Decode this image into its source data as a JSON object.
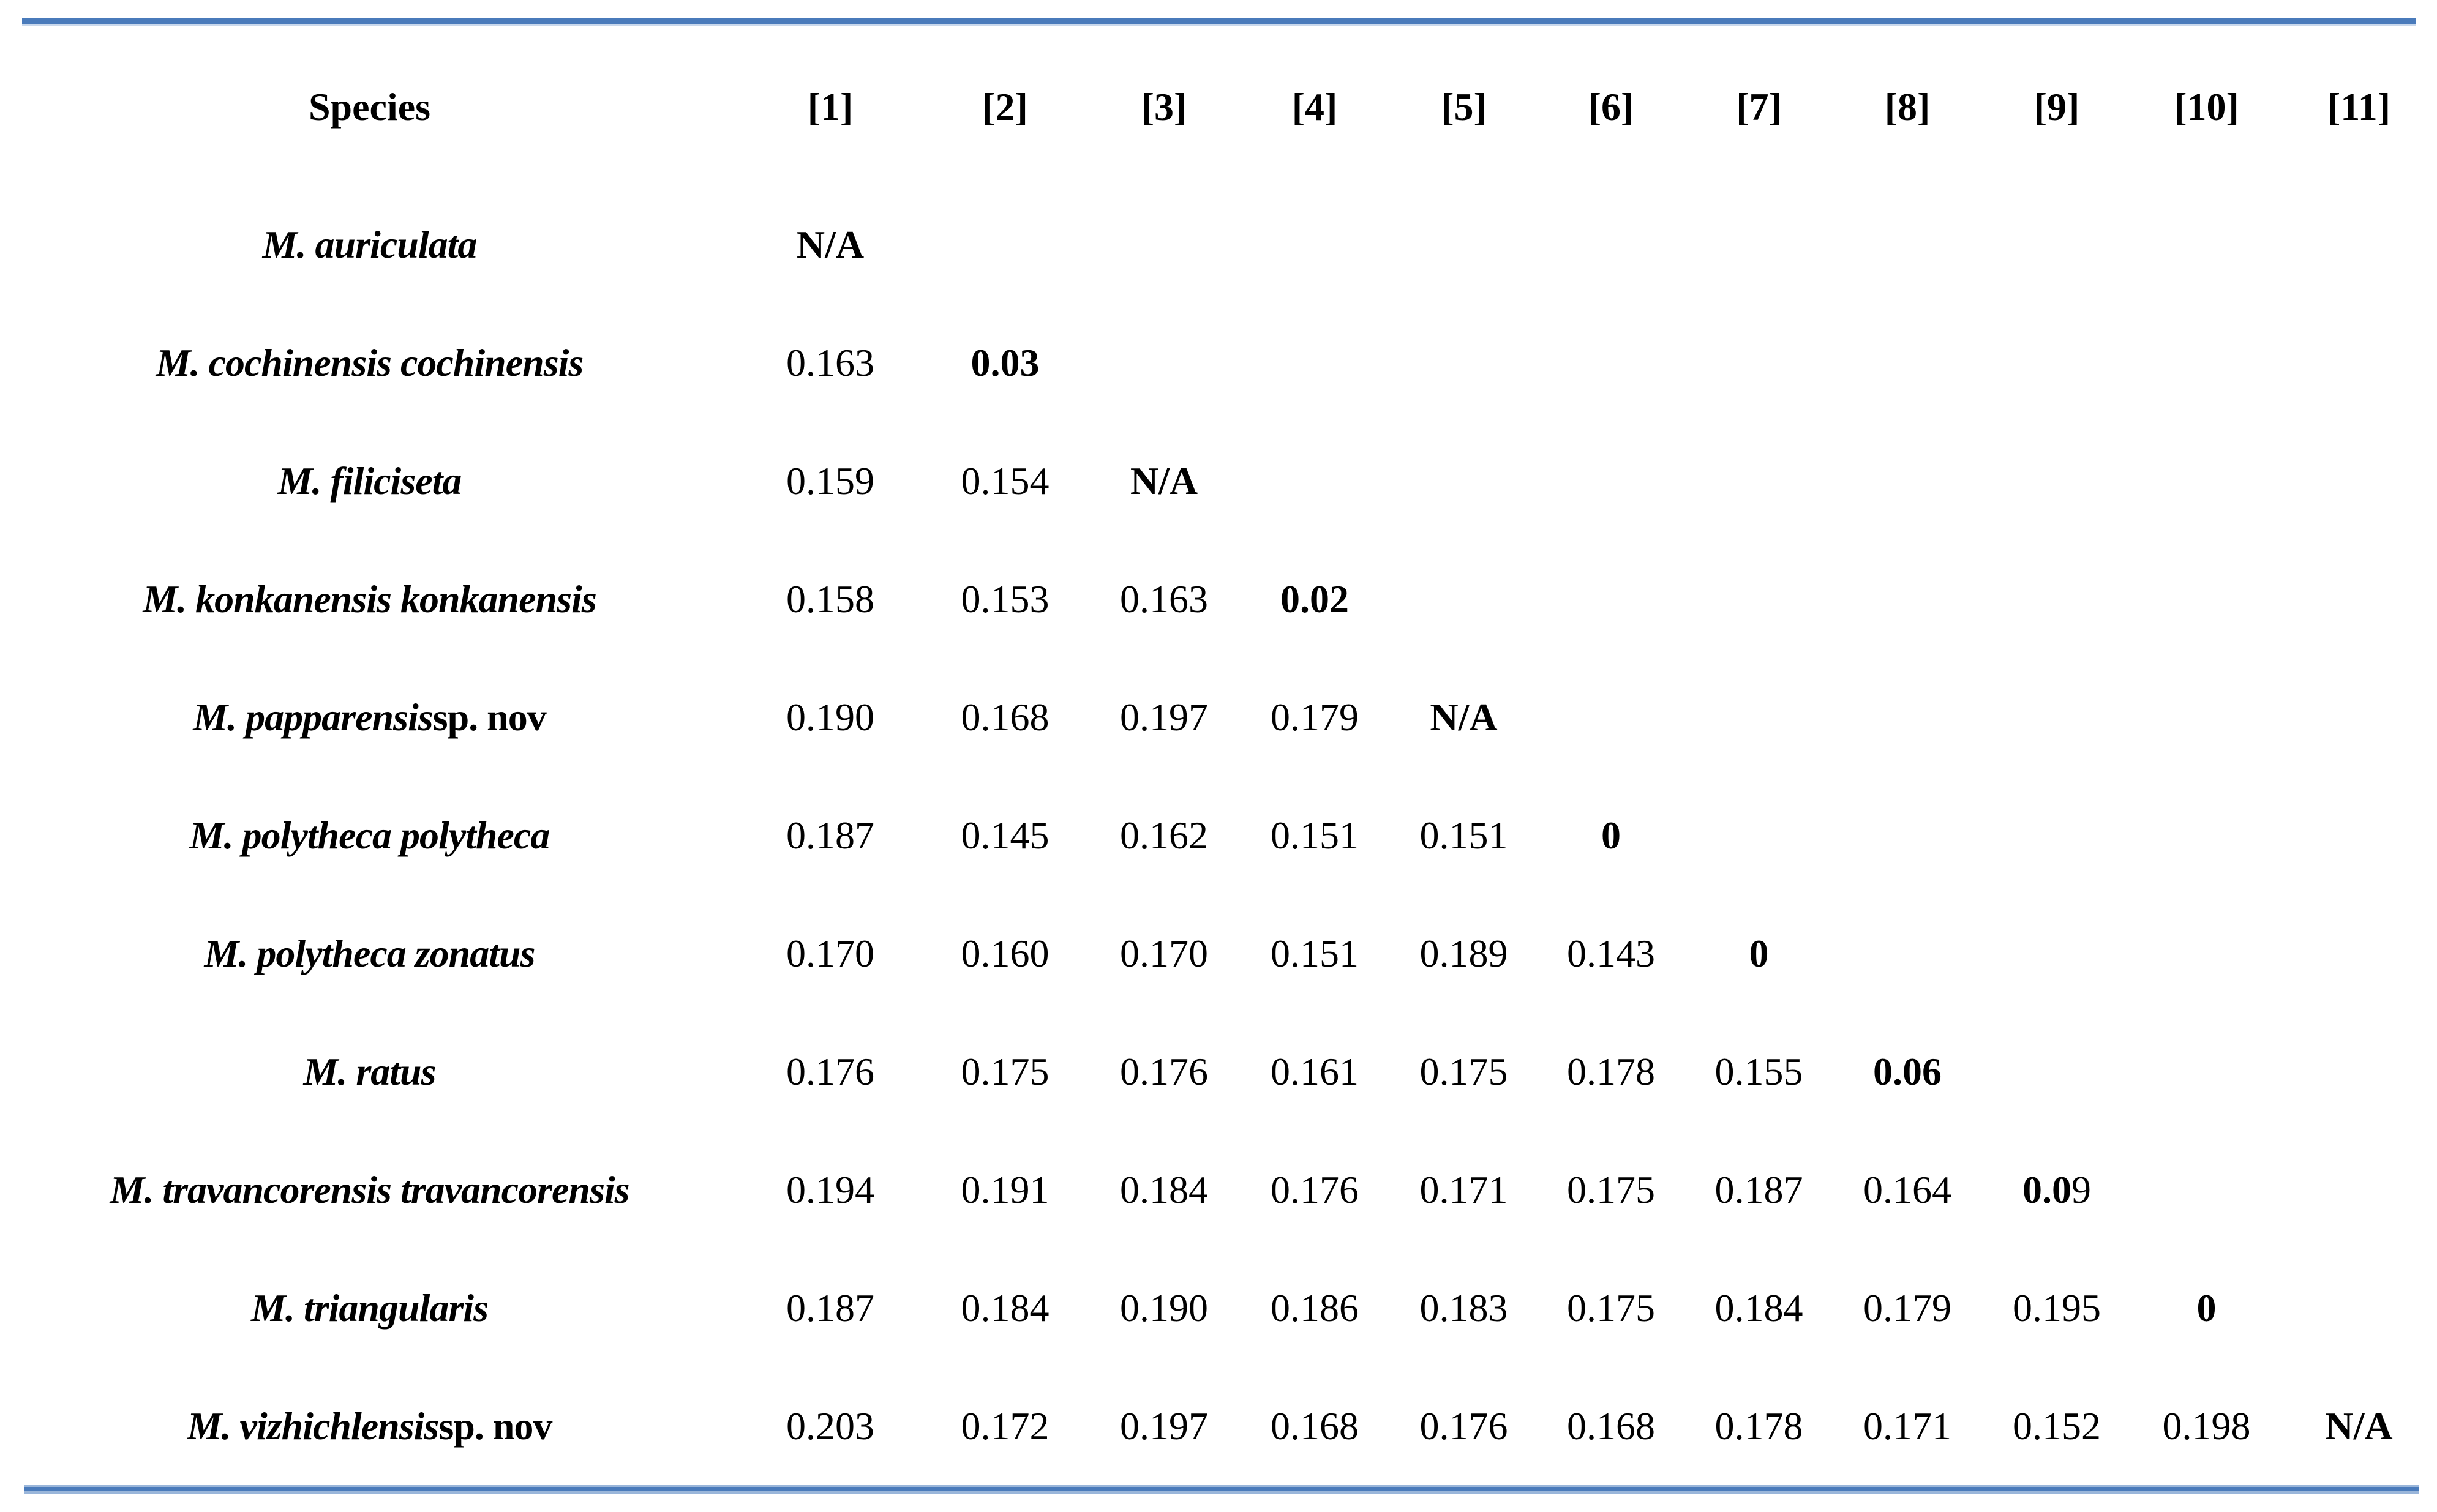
{
  "page": {
    "background_color": "#ffffff",
    "accent_border_color": "#4a7bbb",
    "accent_border_light_color": "#9ab6da"
  },
  "table": {
    "header": {
      "species_label": "Species",
      "columns": [
        "[1]",
        "[2]",
        "[3]",
        "[4]",
        "[5]",
        "[6]",
        "[7]",
        "[8]",
        "[9]",
        "[10]",
        "[11]"
      ]
    },
    "rows": [
      {
        "species": "M. auriculata",
        "suffix": "",
        "values": [
          {
            "t": "N/A",
            "b": true
          }
        ]
      },
      {
        "species": "M. cochinensis cochinensis",
        "suffix": "",
        "values": [
          {
            "t": "0.163"
          },
          {
            "t": "0.03",
            "b": true
          }
        ]
      },
      {
        "species": "M. filiciseta",
        "suffix": "",
        "values": [
          {
            "t": "0.159"
          },
          {
            "t": "0.154"
          },
          {
            "t": "N/A",
            "b": true
          }
        ]
      },
      {
        "species": "M. konkanensis konkanensis",
        "suffix": "",
        "values": [
          {
            "t": "0.158"
          },
          {
            "t": "0.153"
          },
          {
            "t": "0.163"
          },
          {
            "t": "0.02",
            "b": true
          }
        ]
      },
      {
        "species": "M. papparensis",
        "suffix": " sp. nov",
        "values": [
          {
            "t": "0.190"
          },
          {
            "t": "0.168"
          },
          {
            "t": "0.197"
          },
          {
            "t": "0.179"
          },
          {
            "t": "N/A",
            "b": true
          }
        ]
      },
      {
        "species": "M. polytheca polytheca",
        "suffix": "",
        "values": [
          {
            "t": "0.187"
          },
          {
            "t": "0.145"
          },
          {
            "t": "0.162"
          },
          {
            "t": "0.151"
          },
          {
            "t": "0.151"
          },
          {
            "t": "0",
            "b": true
          }
        ]
      },
      {
        "species": "M. polytheca zonatus",
        "suffix": "",
        "values": [
          {
            "t": "0.170"
          },
          {
            "t": "0.160"
          },
          {
            "t": "0.170"
          },
          {
            "t": "0.151"
          },
          {
            "t": "0.189"
          },
          {
            "t": "0.143"
          },
          {
            "t": "0",
            "b": true
          }
        ]
      },
      {
        "species": "M. ratus",
        "suffix": "",
        "values": [
          {
            "t": "0.176"
          },
          {
            "t": "0.175"
          },
          {
            "t": "0.176"
          },
          {
            "t": "0.161"
          },
          {
            "t": "0.175"
          },
          {
            "t": "0.178"
          },
          {
            "t": "0.155"
          },
          {
            "t": "0.06",
            "b": true
          }
        ]
      },
      {
        "species": "M. travancorensis travancorensis",
        "suffix": "",
        "values": [
          {
            "t": "0.194"
          },
          {
            "t": "0.191"
          },
          {
            "t": "0.184"
          },
          {
            "t": "0.176"
          },
          {
            "t": "0.171"
          },
          {
            "t": "0.175"
          },
          {
            "t": "0.187"
          },
          {
            "t": "0.164"
          },
          {
            "bt": "0.0",
            "rt": "9"
          }
        ]
      },
      {
        "species": "M. triangularis",
        "suffix": "",
        "values": [
          {
            "t": "0.187"
          },
          {
            "t": "0.184"
          },
          {
            "t": "0.190"
          },
          {
            "t": "0.186"
          },
          {
            "t": "0.183"
          },
          {
            "t": "0.175"
          },
          {
            "t": "0.184"
          },
          {
            "t": "0.179"
          },
          {
            "t": "0.195"
          },
          {
            "t": "0",
            "b": true
          }
        ]
      },
      {
        "species": "M. vizhichlensis",
        "suffix": " sp. nov",
        "values": [
          {
            "t": "0.203"
          },
          {
            "t": "0.172"
          },
          {
            "t": "0.197"
          },
          {
            "t": "0.168"
          },
          {
            "t": "0.176"
          },
          {
            "t": "0.168"
          },
          {
            "t": "0.178"
          },
          {
            "t": "0.171"
          },
          {
            "t": "0.152"
          },
          {
            "t": "0.198"
          },
          {
            "t": "N/A",
            "b": true
          }
        ]
      }
    ]
  }
}
